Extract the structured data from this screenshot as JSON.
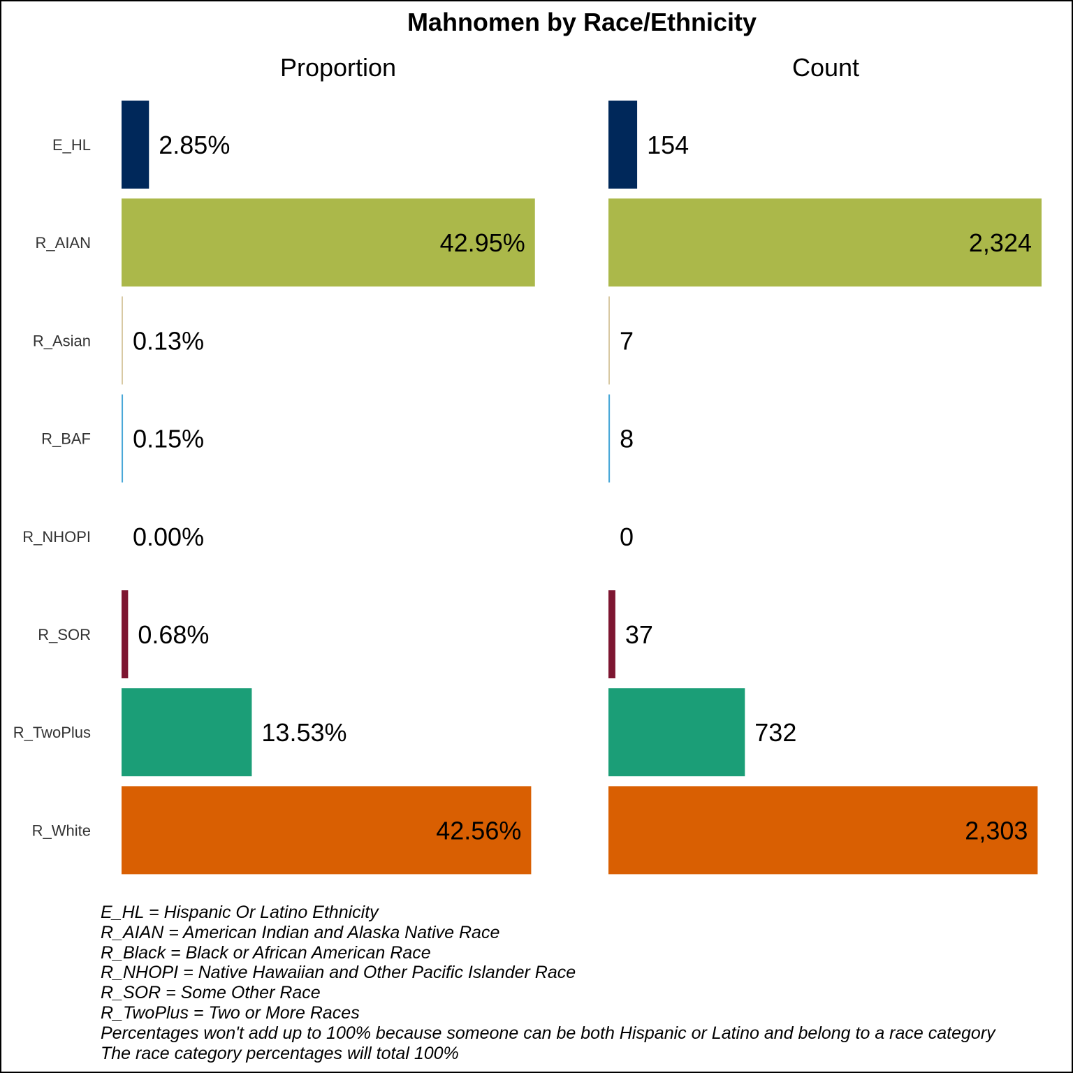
{
  "chart_data": {
    "type": "bar",
    "orientation": "horizontal",
    "title": "Mahnomen by Race/Ethnicity",
    "categories": [
      "E_HL",
      "R_AIAN",
      "R_Asian",
      "R_BAF",
      "R_NHOPI",
      "R_SOR",
      "R_TwoPlus",
      "R_White"
    ],
    "colors": [
      "#00285a",
      "#abb84a",
      "#d8c9a3",
      "#4aa8d8",
      "#c2185b",
      "#7d1631",
      "#1b9e77",
      "#d95f02"
    ],
    "panels": [
      {
        "name": "Proportion",
        "values": [
          2.85,
          42.95,
          0.13,
          0.15,
          0.0,
          0.68,
          13.53,
          42.56
        ],
        "labels": [
          "2.85%",
          "42.95%",
          "0.13%",
          "0.15%",
          "0.00%",
          "0.68%",
          "13.53%",
          "42.56%"
        ],
        "xlim": [
          0,
          45
        ]
      },
      {
        "name": "Count",
        "values": [
          154,
          2324,
          7,
          8,
          0,
          37,
          732,
          2303
        ],
        "labels": [
          "154",
          "2,324",
          "7",
          "8",
          "0",
          "37",
          "732",
          "2,303"
        ],
        "xlim": [
          0,
          2324
        ]
      }
    ],
    "grid": false,
    "legend": "none"
  },
  "notes": [
    "E_HL = Hispanic Or Latino Ethnicity",
    "R_AIAN = American Indian and Alaska Native Race",
    "R_Black = Black or African American Race",
    "R_NHOPI = Native Hawaiian and Other Pacific Islander Race",
    "R_SOR = Some Other Race",
    "R_TwoPlus = Two or More Races",
    "Percentages won't add up to 100% because someone can be both Hispanic or Latino and belong to a race category",
    "The race category percentages will total 100%"
  ]
}
